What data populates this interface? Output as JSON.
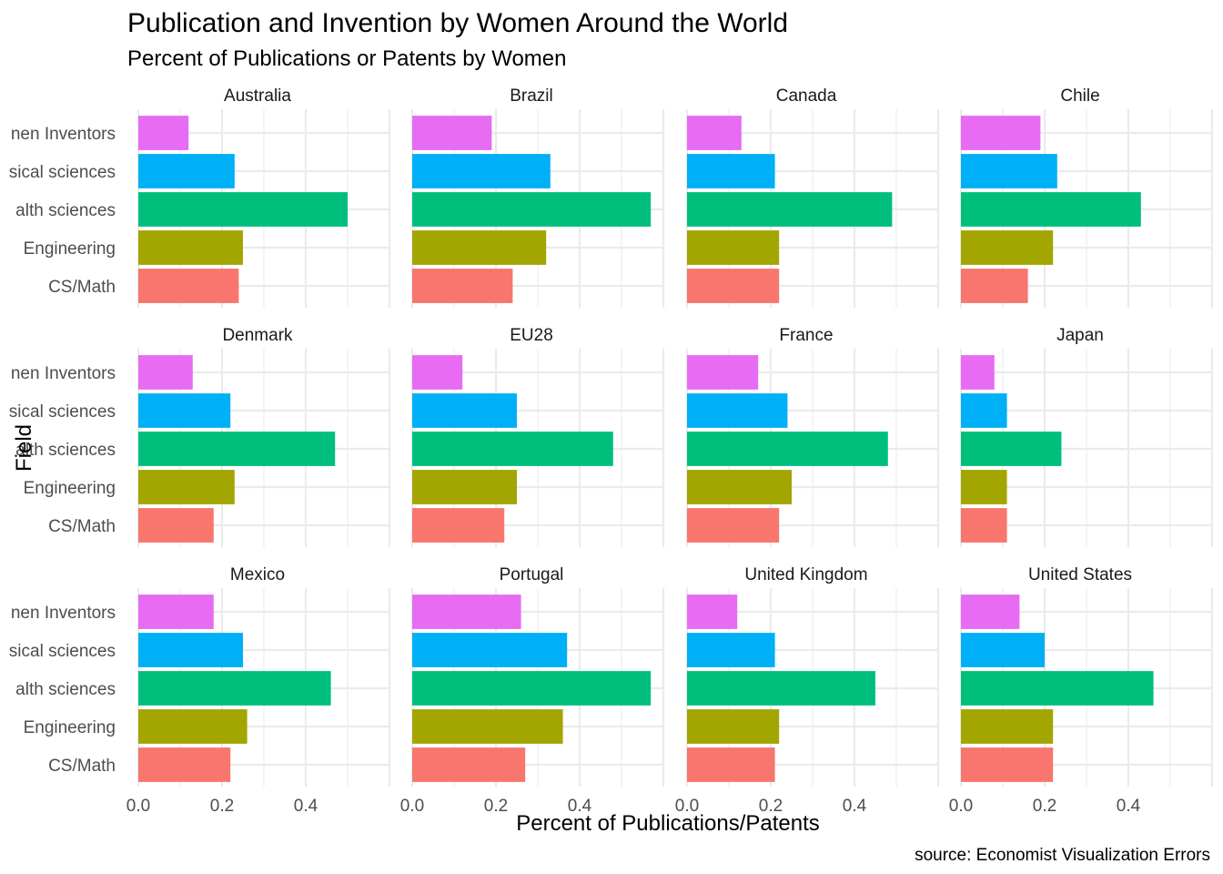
{
  "chart_data": {
    "type": "bar",
    "orientation": "horizontal",
    "title": "Publication and Invention by Women Around the World",
    "subtitle": "Percent of Publications or Patents by Women",
    "xlabel": "Percent of Publications/Patents",
    "ylabel": "Field",
    "caption": "source: Economist Visualization Errors",
    "xlim": [
      0,
      0.6
    ],
    "xticks": [
      0.0,
      0.2,
      0.4
    ],
    "xtick_labels": [
      "0.0",
      "0.2",
      "0.4"
    ],
    "grid": true,
    "legend": "none",
    "categories": [
      "CS/Math",
      "Engineering",
      "Health sciences",
      "Physical sciences",
      "Women Inventors"
    ],
    "category_labels_visible": [
      "CS/Math",
      "Engineering",
      "alth sciences",
      "sical sciences",
      "nen Inventors"
    ],
    "colors": {
      "CS/Math": "#F8766D",
      "Engineering": "#A3A500",
      "Health sciences": "#00BF7D",
      "Physical sciences": "#00B0F6",
      "Women Inventors": "#E76BF3"
    },
    "panels": [
      {
        "country": "Australia",
        "values": [
          0.24,
          0.25,
          0.5,
          0.23,
          0.12
        ]
      },
      {
        "country": "Brazil",
        "values": [
          0.24,
          0.32,
          0.57,
          0.33,
          0.19
        ]
      },
      {
        "country": "Canada",
        "values": [
          0.22,
          0.22,
          0.49,
          0.21,
          0.13
        ]
      },
      {
        "country": "Chile",
        "values": [
          0.16,
          0.22,
          0.43,
          0.23,
          0.19
        ]
      },
      {
        "country": "Denmark",
        "values": [
          0.18,
          0.23,
          0.47,
          0.22,
          0.13
        ]
      },
      {
        "country": "EU28",
        "values": [
          0.22,
          0.25,
          0.48,
          0.25,
          0.12
        ]
      },
      {
        "country": "France",
        "values": [
          0.22,
          0.25,
          0.48,
          0.24,
          0.17
        ]
      },
      {
        "country": "Japan",
        "values": [
          0.11,
          0.11,
          0.24,
          0.11,
          0.08
        ]
      },
      {
        "country": "Mexico",
        "values": [
          0.22,
          0.26,
          0.46,
          0.25,
          0.18
        ]
      },
      {
        "country": "Portugal",
        "values": [
          0.27,
          0.36,
          0.57,
          0.37,
          0.26
        ]
      },
      {
        "country": "United Kingdom",
        "values": [
          0.21,
          0.22,
          0.45,
          0.21,
          0.12
        ]
      },
      {
        "country": "United States",
        "values": [
          0.22,
          0.22,
          0.46,
          0.2,
          0.14
        ]
      }
    ]
  }
}
